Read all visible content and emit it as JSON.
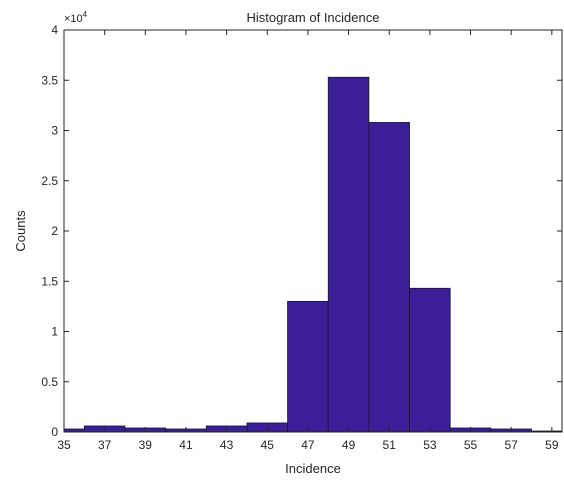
{
  "chart_data": {
    "type": "bar",
    "title": "Histogram of Incidence",
    "xlabel": "Incidence",
    "ylabel": "Counts",
    "y_exponent_base": "×10",
    "y_exponent_power": "4",
    "xlim": [
      35,
      59.5
    ],
    "ylim": [
      0,
      4
    ],
    "y_scale_factor": 10000,
    "xticks": [
      35,
      37,
      39,
      41,
      43,
      45,
      47,
      49,
      51,
      53,
      55,
      57,
      59
    ],
    "xtick_labels": [
      "35",
      "37",
      "39",
      "41",
      "43",
      "45",
      "47",
      "49",
      "51",
      "53",
      "55",
      "57",
      "59"
    ],
    "yticks": [
      0,
      0.5,
      1,
      1.5,
      2,
      2.5,
      3,
      3.5,
      4
    ],
    "ytick_labels": [
      "0",
      "0.5",
      "1",
      "1.5",
      "2",
      "2.5",
      "3",
      "3.5",
      "4"
    ],
    "bins": [
      {
        "x0": 35,
        "x1": 36,
        "value": 0.03
      },
      {
        "x0": 36,
        "x1": 38,
        "value": 0.06
      },
      {
        "x0": 38,
        "x1": 40,
        "value": 0.04
      },
      {
        "x0": 40,
        "x1": 42,
        "value": 0.03
      },
      {
        "x0": 42,
        "x1": 44,
        "value": 0.06
      },
      {
        "x0": 44,
        "x1": 46,
        "value": 0.09
      },
      {
        "x0": 46,
        "x1": 48,
        "value": 1.3
      },
      {
        "x0": 48,
        "x1": 50,
        "value": 3.53
      },
      {
        "x0": 50,
        "x1": 52,
        "value": 3.08
      },
      {
        "x0": 52,
        "x1": 54,
        "value": 1.43
      },
      {
        "x0": 54,
        "x1": 56,
        "value": 0.04
      },
      {
        "x0": 56,
        "x1": 58,
        "value": 0.03
      },
      {
        "x0": 58,
        "x1": 59.5,
        "value": 0.01
      }
    ],
    "bar_color": "#3a1f99",
    "bar_edge_color": "#1a1a1a",
    "grid": false,
    "legend": "none"
  }
}
